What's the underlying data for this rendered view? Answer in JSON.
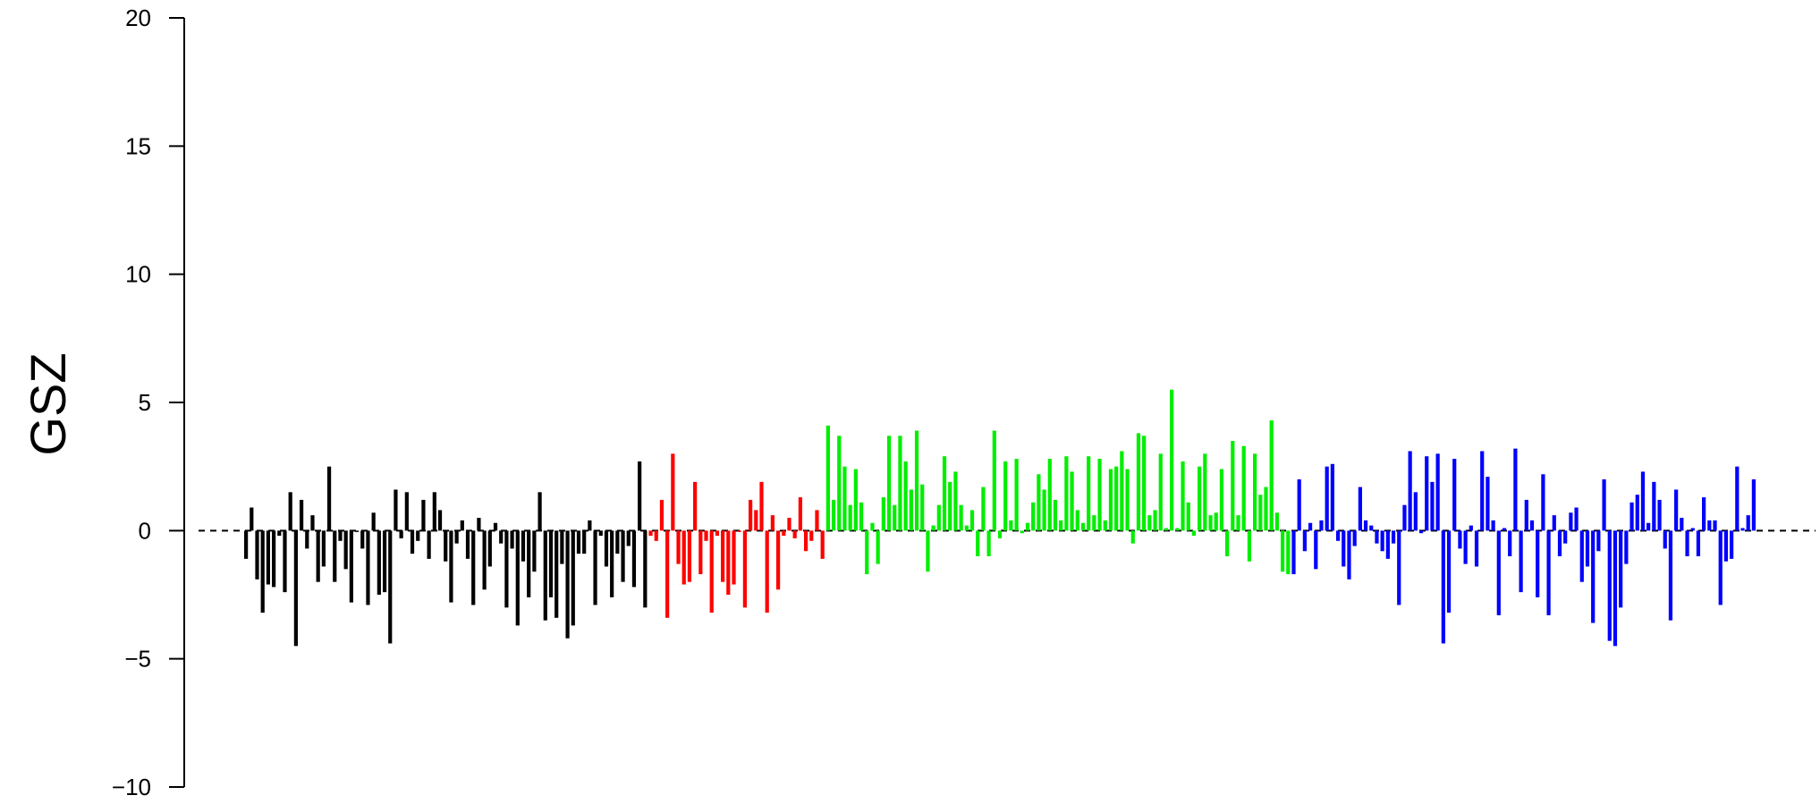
{
  "chart_data": {
    "type": "bar",
    "title": "",
    "xlabel": "",
    "ylabel": "GSZ",
    "ylim": [
      -10,
      20
    ],
    "yticks": [
      -10,
      -5,
      0,
      5,
      10,
      15,
      20
    ],
    "ytick_labels": [
      "−10",
      "−5",
      "0",
      "5",
      "10",
      "15",
      "20"
    ],
    "reference_line": {
      "y": 0,
      "style": "dashed"
    },
    "grid": false,
    "legend": "none",
    "series": [
      {
        "color": "#000000",
        "values": [
          -1.1,
          0.9,
          -1.9,
          -3.2,
          -2.1,
          -2.2,
          -0.2,
          -2.4,
          1.5,
          -4.5,
          1.2,
          -0.7,
          0.6,
          -2.0,
          -1.4,
          2.5,
          -2.0,
          -0.4,
          -1.5,
          -2.8,
          0.0,
          -0.7,
          -2.9,
          0.7,
          -2.5,
          -2.4,
          -4.4,
          1.6,
          -0.3,
          1.5,
          -0.9,
          -0.4,
          1.2,
          -1.1,
          1.5,
          0.8,
          -1.2,
          -2.8,
          -0.5,
          0.4,
          -1.1,
          -2.9,
          0.5,
          -2.3,
          -1.4,
          0.3,
          -0.5,
          -3.0,
          -0.7,
          -3.7,
          -1.2,
          -2.6,
          -1.6,
          1.5,
          -3.5,
          -2.6,
          -3.4,
          -1.3,
          -4.2,
          -3.7,
          -0.9,
          -0.9,
          0.4,
          -2.9,
          -0.2,
          -1.4,
          -2.6,
          -0.9,
          -2.0,
          -0.6,
          -2.2,
          2.7,
          -3.0
        ]
      },
      {
        "color": "#ff0000",
        "values": [
          -0.2,
          -0.4,
          1.2,
          -3.4,
          3.0,
          -1.3,
          -2.1,
          -2.0,
          1.9,
          -1.7,
          -0.4,
          -3.2,
          -0.2,
          -2.0,
          -2.5,
          -2.1,
          0.0,
          -3.0,
          1.2,
          0.8,
          1.9,
          -3.2,
          0.6,
          -2.3,
          -0.2,
          0.5,
          -0.3,
          1.3,
          -0.8,
          -0.4,
          0.8,
          -1.1
        ]
      },
      {
        "color": "#00ee00",
        "values": [
          4.1,
          1.2,
          3.7,
          2.5,
          1.0,
          2.4,
          1.1,
          -1.7,
          0.3,
          -1.3,
          1.3,
          3.7,
          1.0,
          3.7,
          2.7,
          1.6,
          3.9,
          1.8,
          -1.6,
          0.2,
          1.0,
          2.9,
          1.9,
          2.3,
          1.0,
          0.2,
          0.8,
          -1.0,
          1.7,
          -1.0,
          3.9,
          -0.3,
          2.7,
          0.4,
          2.8,
          -0.1,
          0.3,
          1.1,
          2.2,
          1.6,
          2.8,
          1.2,
          0.4,
          2.9,
          2.3,
          0.8,
          0.3,
          2.9,
          0.6,
          2.8,
          0.4,
          2.4,
          2.5,
          3.1,
          2.4,
          -0.5,
          3.8,
          3.7,
          0.6,
          0.8,
          3.0,
          0.1,
          5.5,
          0.1,
          2.7,
          1.1,
          -0.2,
          2.5,
          3.0,
          0.6,
          0.7,
          2.4,
          -1.0,
          3.5,
          0.6,
          3.3,
          -1.2,
          3.0,
          1.4,
          1.7,
          4.3,
          0.7,
          -1.6,
          -1.7
        ]
      },
      {
        "color": "#0000ff",
        "values": [
          -1.7,
          2.0,
          -0.8,
          0.3,
          -1.5,
          0.4,
          2.5,
          2.6,
          -0.4,
          -1.4,
          -1.9,
          -0.6,
          1.7,
          0.4,
          0.2,
          -0.5,
          -0.8,
          -1.1,
          -0.5,
          -2.9,
          1.0,
          3.1,
          1.5,
          -0.1,
          2.9,
          1.9,
          3.0,
          -4.4,
          -3.2,
          2.8,
          -0.7,
          -1.3,
          0.2,
          -1.4,
          3.1,
          2.1,
          0.4,
          -3.3,
          0.1,
          -1.0,
          3.2,
          -2.4,
          1.2,
          0.4,
          -2.6,
          2.2,
          -3.3,
          0.6,
          -1.0,
          -0.5,
          0.7,
          0.9,
          -2.0,
          -1.4,
          -3.6,
          -0.8,
          2.0,
          -4.3,
          -4.5,
          -3.0,
          -1.3,
          1.1,
          1.4,
          2.3,
          0.3,
          1.9,
          1.2,
          -0.7,
          -3.5,
          1.6,
          0.5,
          -1.0,
          0.1,
          -1.0,
          1.3,
          0.4,
          0.4,
          -2.9,
          -1.2,
          -1.1,
          2.5,
          0.1,
          0.6,
          2.0
        ]
      }
    ]
  }
}
